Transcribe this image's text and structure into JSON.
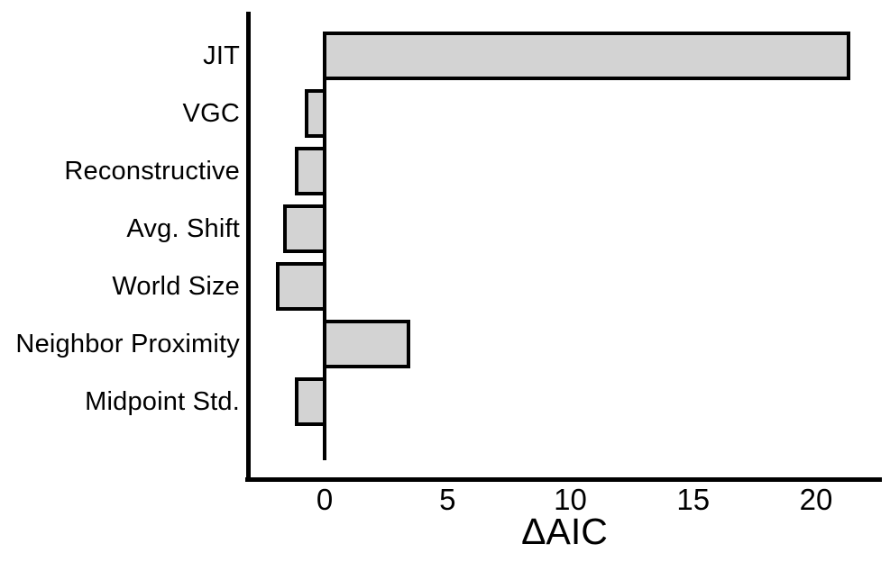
{
  "chart_data": {
    "type": "bar",
    "orientation": "horizontal",
    "title": "",
    "xlabel": "ΔAIC",
    "ylabel": "",
    "categories": [
      "JIT",
      "VGC",
      "Reconstructive",
      "Avg. Shift",
      "World Size",
      "Neighbor Proximity",
      "Midpoint Std."
    ],
    "values": [
      21.4,
      -0.8,
      -1.2,
      -1.7,
      -2.0,
      3.5,
      -1.2
    ],
    "xticks": [
      0,
      5,
      10,
      15,
      20
    ],
    "xlim": [
      -3.1,
      22.6
    ],
    "grid": false,
    "legend": null,
    "colors": {
      "bar_fill": "#d3d3d3",
      "bar_border": "#000000",
      "axis": "#000000",
      "text": "#000000",
      "background": "#ffffff"
    }
  }
}
